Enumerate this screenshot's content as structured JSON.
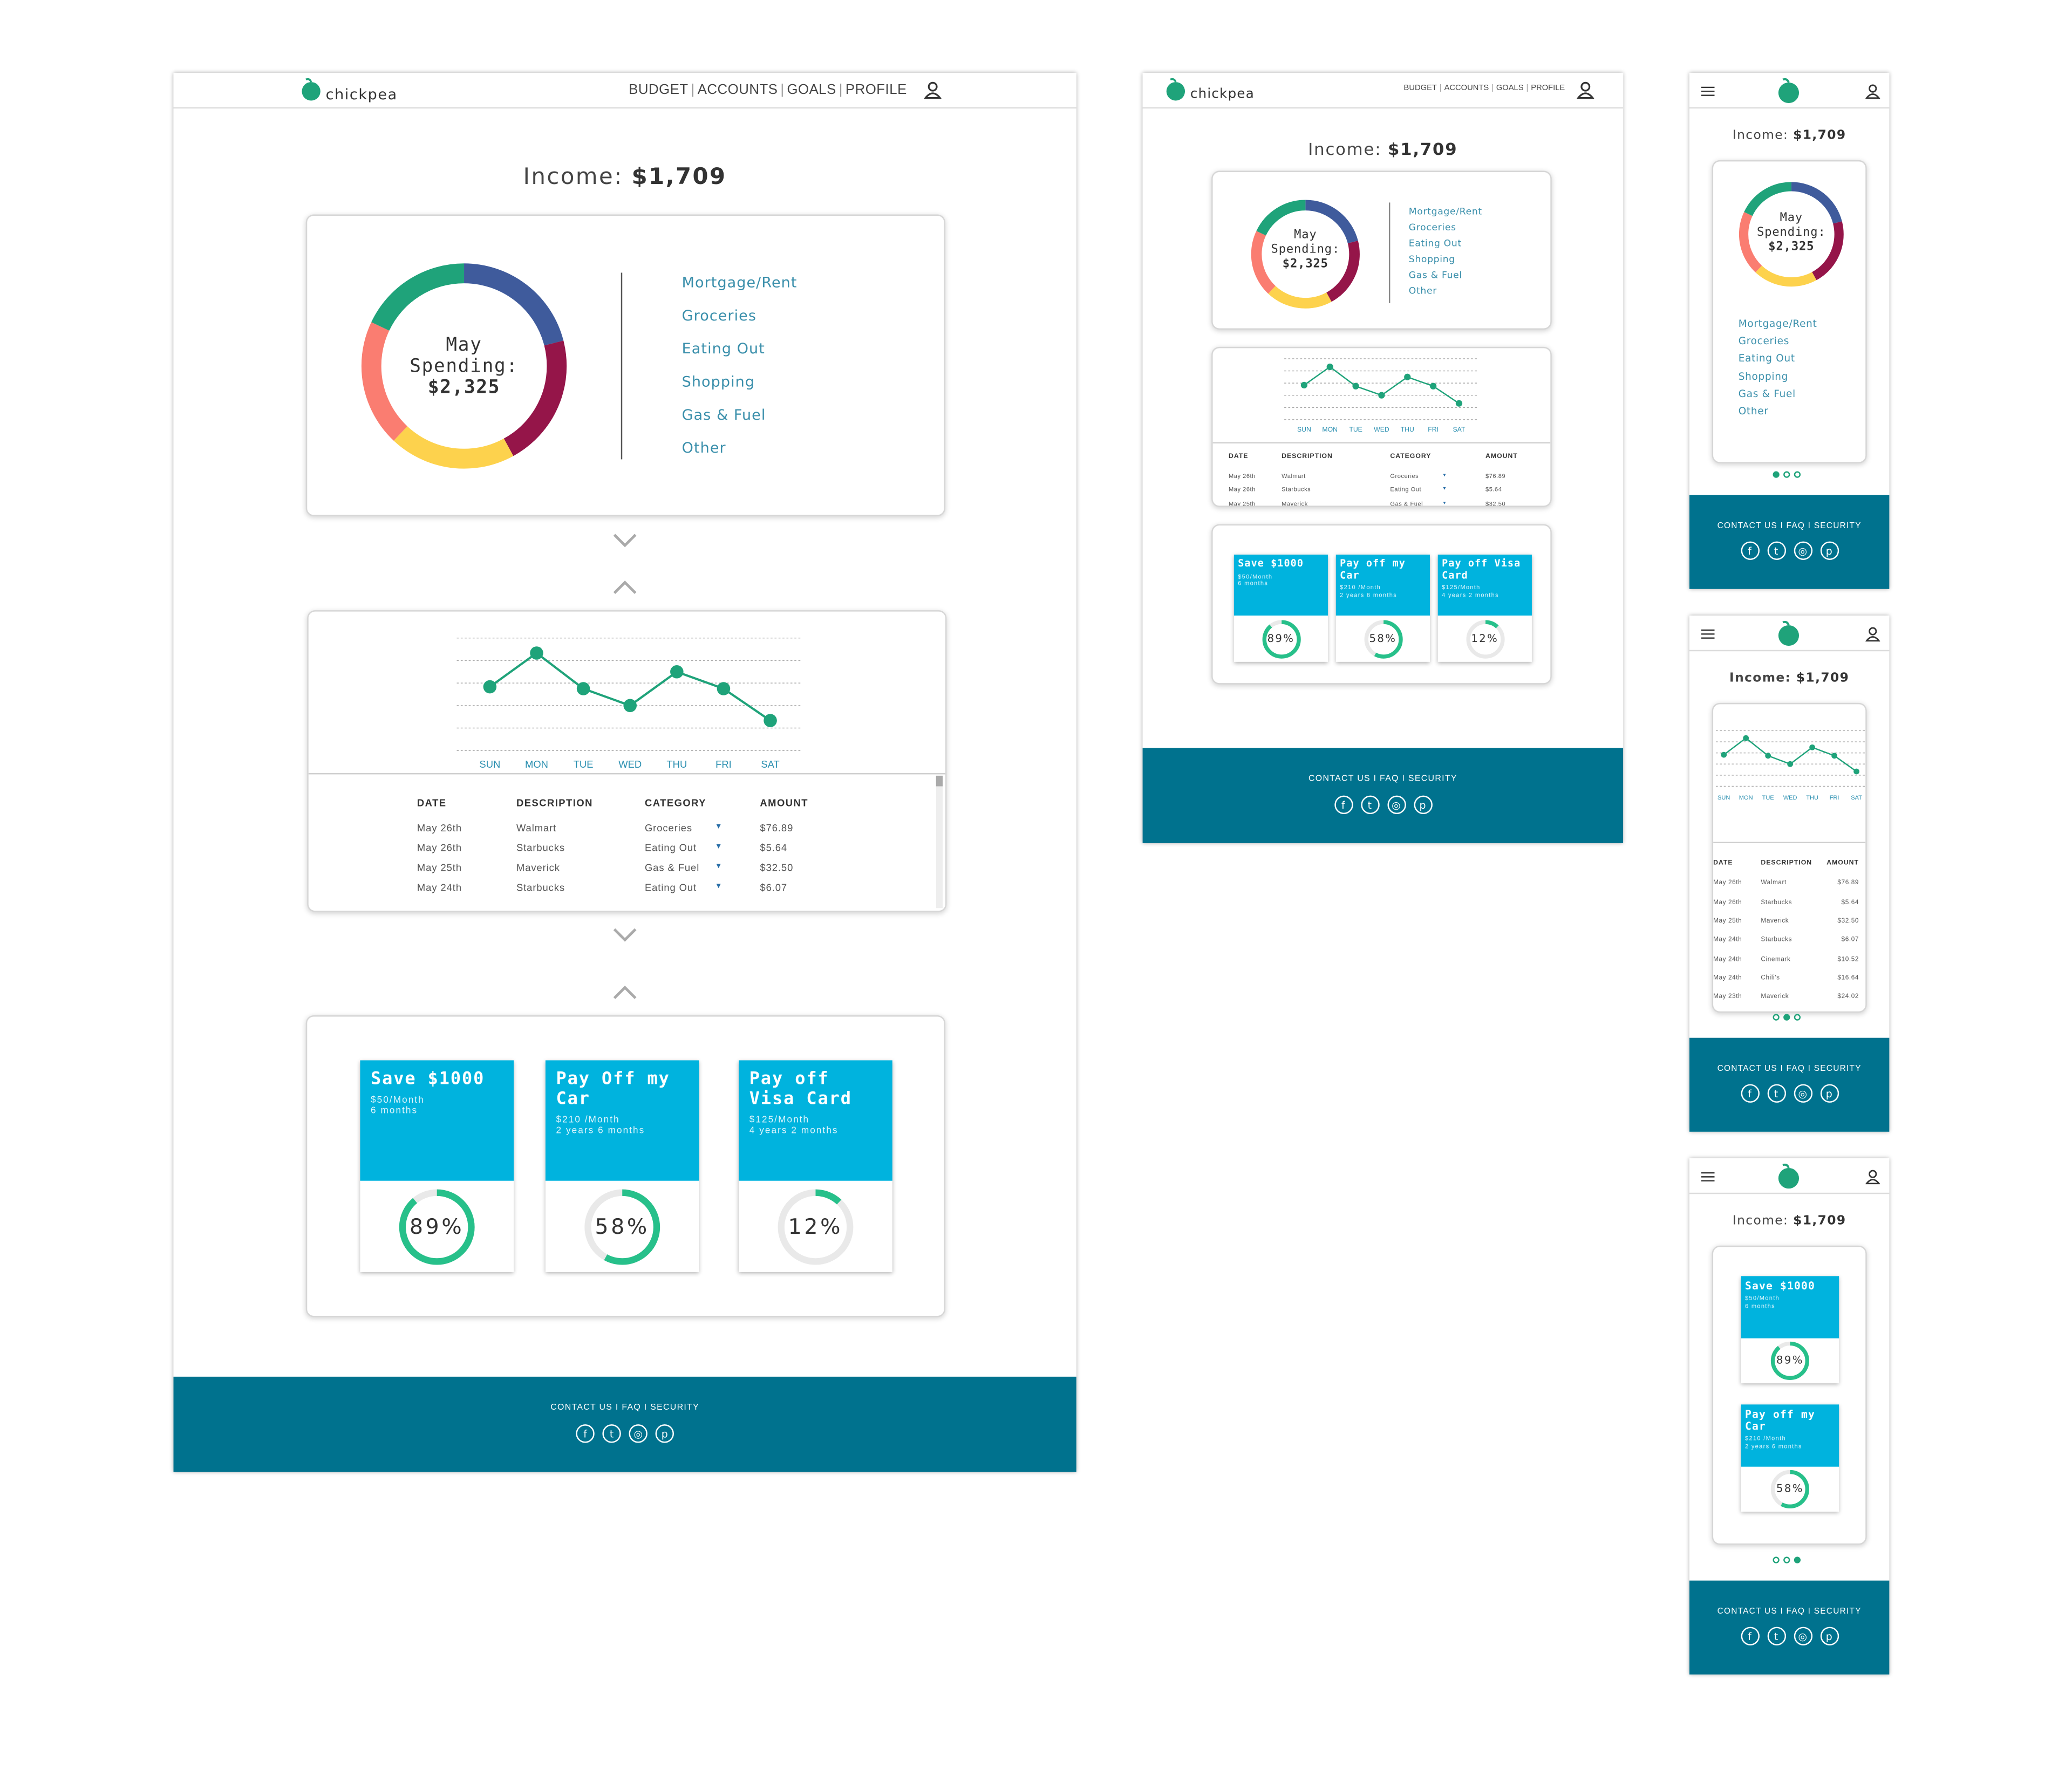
{
  "brand": {
    "name": "chickpea",
    "color": "#1fa37a"
  },
  "nav": [
    "BUDGET",
    "ACCOUNTS",
    "GOALS",
    "PROFILE"
  ],
  "income": {
    "label": "Income:",
    "value": "$1,709"
  },
  "spending": {
    "month": "May",
    "label": "Spending:",
    "value": "$2,325",
    "categories": [
      {
        "name": "Mortgage/Rent",
        "color": "#3f5b9c",
        "share": 0.21
      },
      {
        "name": "Groceries",
        "color": "#951549",
        "share": 0.21
      },
      {
        "name": "Eating Out",
        "color": "#fdd24d",
        "share": 0.2
      },
      {
        "name": "Shopping",
        "color": "#fa7d71",
        "share": 0.2
      },
      {
        "name": "Gas & Fuel",
        "color": "#1fa37a",
        "share": 0.18
      },
      {
        "name": "Other",
        "color": "",
        "share": 0
      }
    ]
  },
  "weekly": {
    "days": [
      "SUN",
      "MON",
      "TUE",
      "WED",
      "THU",
      "FRI",
      "SAT"
    ],
    "values": [
      34,
      52,
      33,
      24,
      42,
      33,
      16
    ]
  },
  "transactions": {
    "headers": [
      "DATE",
      "DESCRIPTION",
      "CATEGORY",
      "AMOUNT"
    ],
    "rows": [
      [
        "May 26th",
        "Walmart",
        "Groceries",
        "$76.89"
      ],
      [
        "May 26th",
        "Starbucks",
        "Eating Out",
        "$5.64"
      ],
      [
        "May 25th",
        "Maverick",
        "Gas & Fuel",
        "$32.50"
      ],
      [
        "May 24th",
        "Starbucks",
        "Eating Out",
        "$6.07"
      ],
      [
        "May 24th",
        "Cinemark",
        "",
        "$10.52"
      ],
      [
        "May 24th",
        "Chili's",
        "",
        "$16.64"
      ],
      [
        "May 23th",
        "Maverick",
        "",
        "$24.02"
      ]
    ]
  },
  "goals": [
    {
      "title": "Save $1000",
      "line1": "$50/Month",
      "line2": "6 months",
      "progress": 89,
      "label": "89%"
    },
    {
      "title": "Pay Off my Car",
      "title_alt": "Pay off my Car",
      "line1": "$210 /Month",
      "line2": "2 years 6 months",
      "progress": 58,
      "label": "58%"
    },
    {
      "title": "Pay off Visa Card",
      "line1": "$125/Month",
      "line2": "4 years 2 months",
      "progress": 12,
      "label": "12%"
    }
  ],
  "footer": {
    "links": "CONTACT US   I  FAQ  I SECURITY",
    "social": [
      "facebook-icon",
      "twitter-icon",
      "instagram-icon",
      "pinterest-icon"
    ]
  },
  "colors": {
    "footer": "#00728e",
    "goal": "#00b3de",
    "accent": "#1fa37a",
    "legend": "#3a8fab"
  }
}
